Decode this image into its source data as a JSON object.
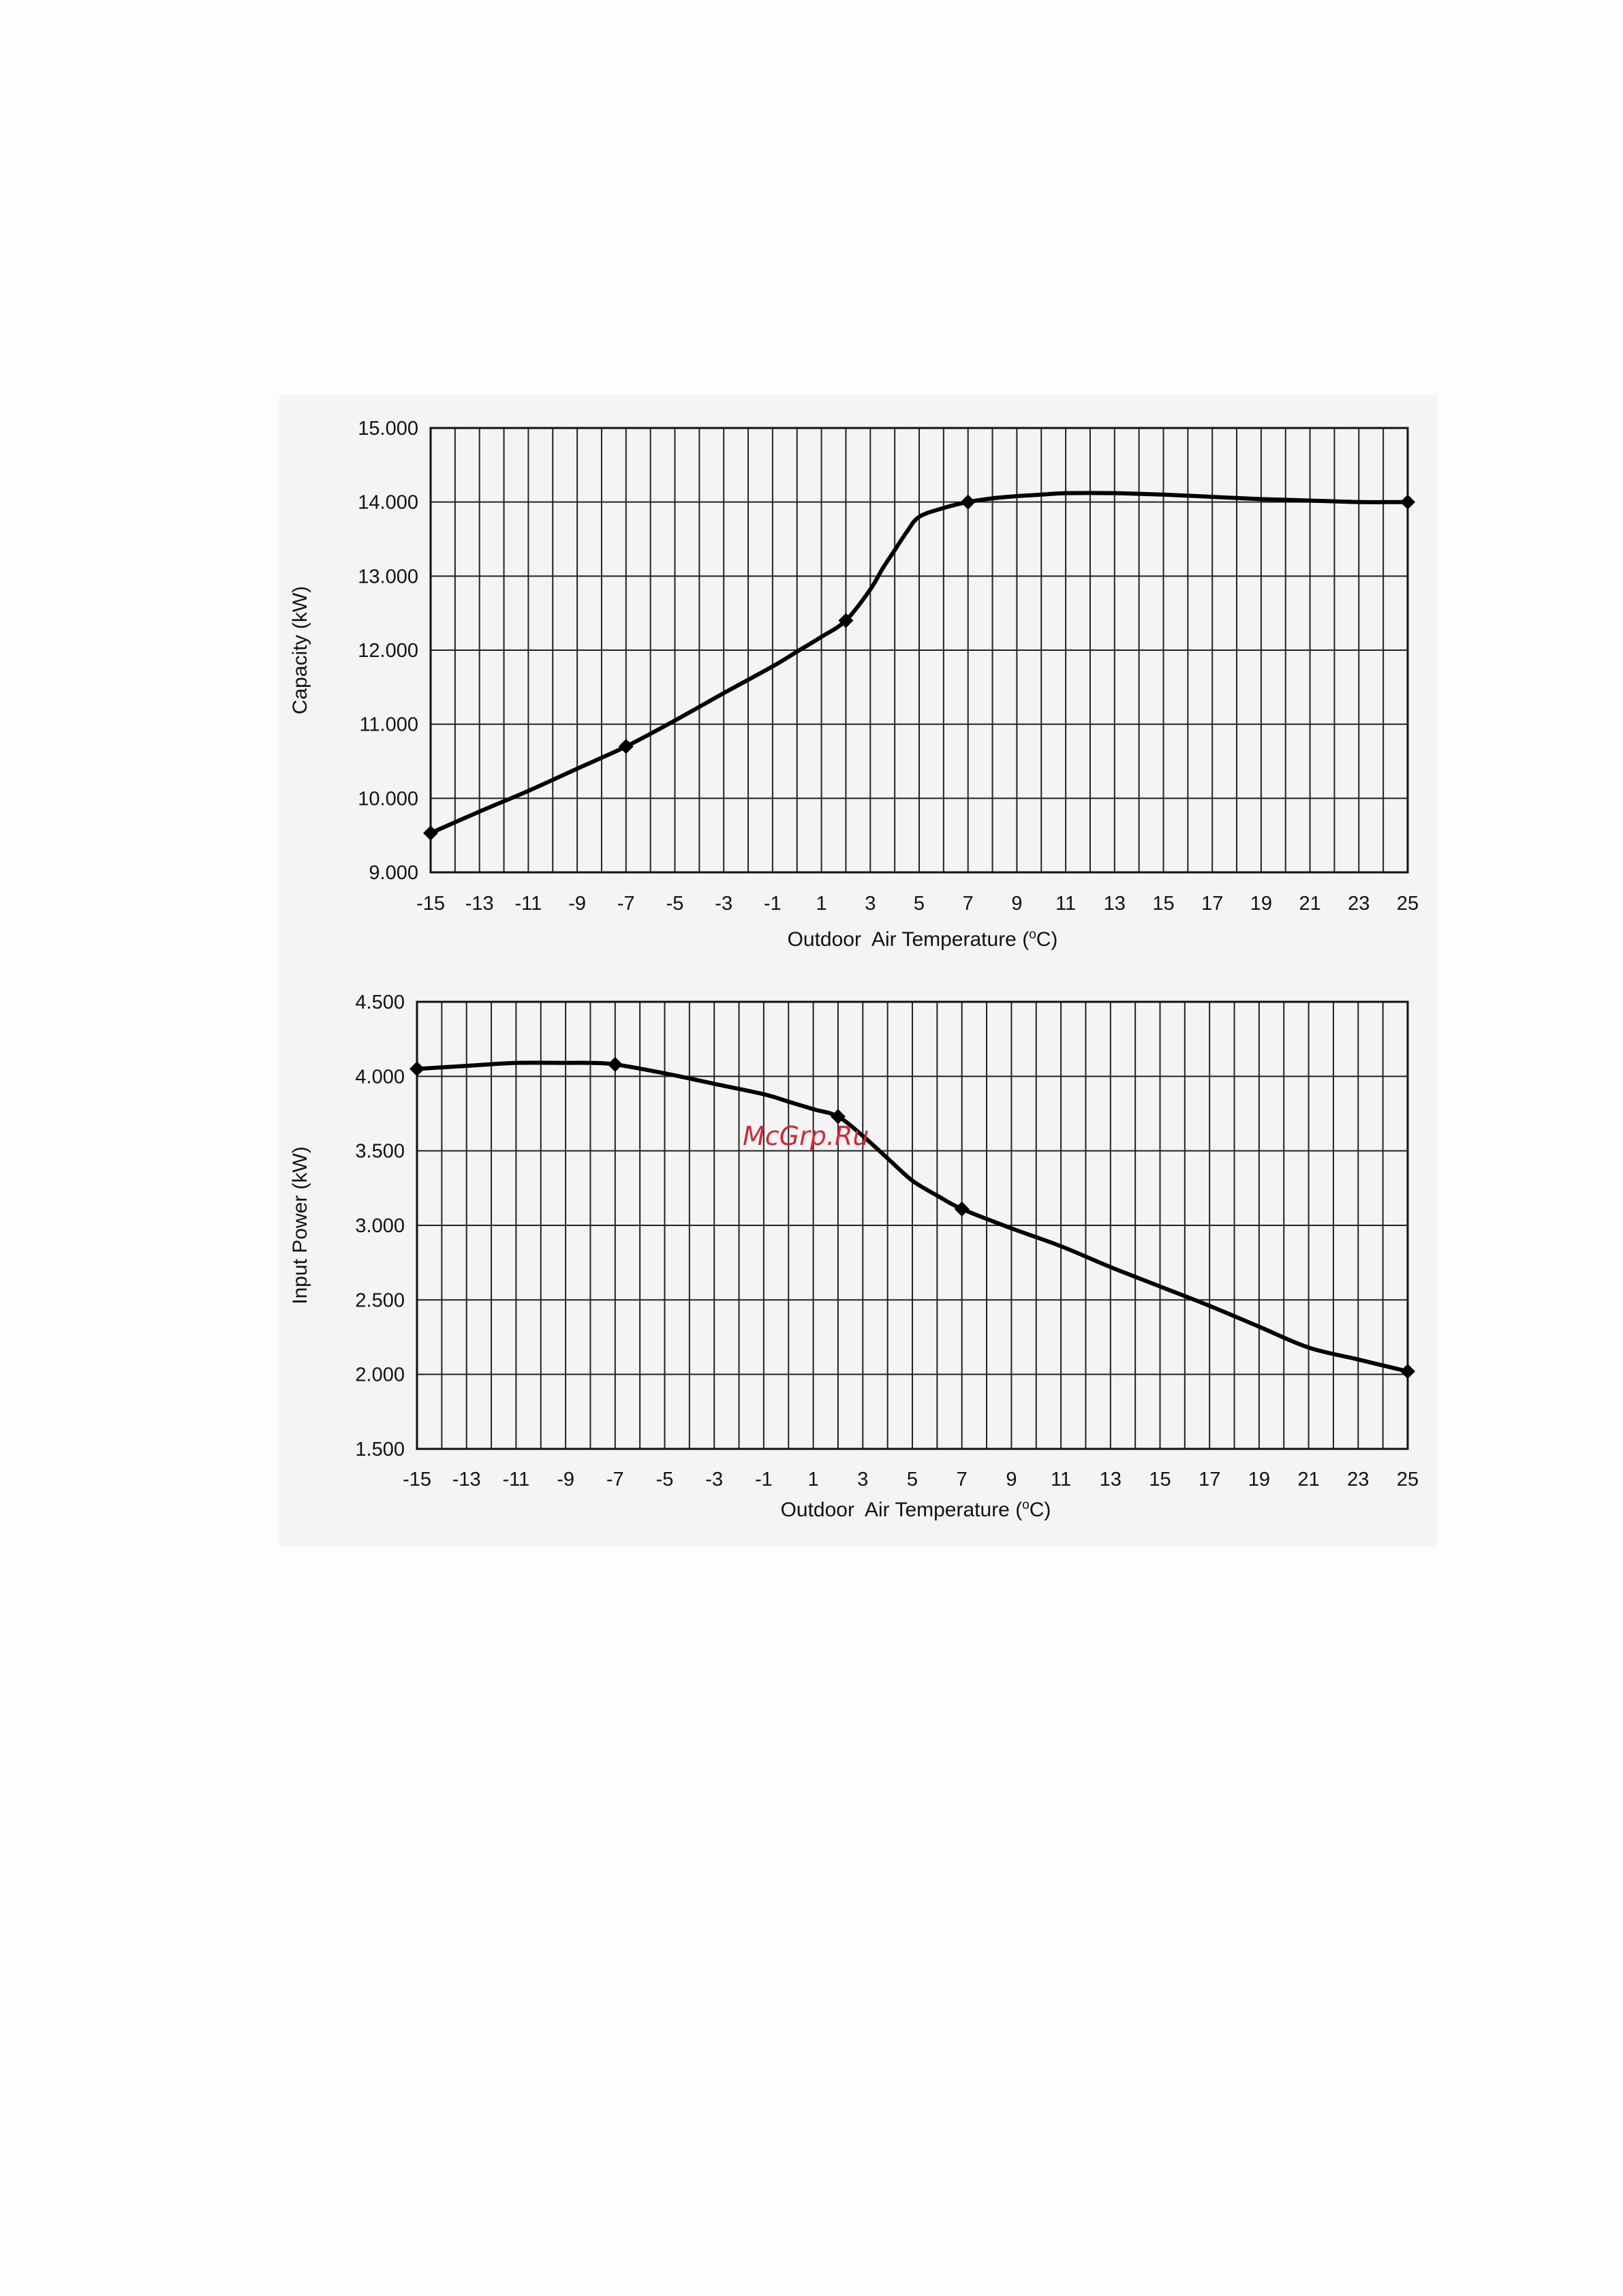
{
  "watermark": "McGrp.Ru",
  "chart_data": [
    {
      "type": "line",
      "xlabel": "Outdoor  Air Temperature (oC)",
      "ylabel": "Capacity (kW)",
      "xlim": [
        -15,
        25
      ],
      "ylim": [
        9.0,
        15.0
      ],
      "xticks": [
        "-15",
        "-13",
        "-11",
        "-9",
        "-7",
        "-5",
        "-3",
        "-1",
        "1",
        "3",
        "5",
        "7",
        "9",
        "11",
        "13",
        "15",
        "17",
        "19",
        "21",
        "23",
        "25"
      ],
      "yticks": [
        "15.000",
        "14.000",
        "13.000",
        "12.000",
        "11.000",
        "10.000",
        "9.000"
      ],
      "grid": true,
      "series": [
        {
          "x": [
            -15,
            -13,
            -11,
            -9,
            -7,
            -5,
            -3,
            -1,
            0,
            1,
            2,
            3,
            3.5,
            4,
            4.5,
            5,
            6,
            7,
            8,
            9,
            10,
            11,
            13,
            15,
            17,
            19,
            21,
            23,
            25
          ],
          "y": [
            9.53,
            9.82,
            10.1,
            10.4,
            10.7,
            11.05,
            11.42,
            11.78,
            11.98,
            12.18,
            12.4,
            12.82,
            13.1,
            13.35,
            13.6,
            13.8,
            13.92,
            14.0,
            14.05,
            14.08,
            14.1,
            14.12,
            14.12,
            14.1,
            14.07,
            14.04,
            14.02,
            14.0,
            14.0
          ]
        }
      ],
      "markers": {
        "x": [
          -15,
          -7,
          2,
          7,
          25
        ],
        "y": [
          9.53,
          10.7,
          12.4,
          14.0,
          14.0
        ]
      }
    },
    {
      "type": "line",
      "xlabel": "Outdoor  Air Temperature (oC)",
      "ylabel": "Input Power (kW)",
      "xlim": [
        -15,
        25
      ],
      "ylim": [
        1.5,
        4.5
      ],
      "xticks": [
        "-15",
        "-13",
        "-11",
        "-9",
        "-7",
        "-5",
        "-3",
        "-1",
        "1",
        "3",
        "5",
        "7",
        "9",
        "11",
        "13",
        "15",
        "17",
        "19",
        "21",
        "23",
        "25"
      ],
      "yticks": [
        "4.500",
        "4.000",
        "3.500",
        "3.000",
        "2.500",
        "2.000",
        "1.500"
      ],
      "grid": true,
      "series": [
        {
          "x": [
            -15,
            -13,
            -11,
            -9,
            -8,
            -7,
            -5,
            -3,
            -1,
            0,
            1,
            2,
            3,
            4,
            5,
            6,
            7,
            9,
            11,
            13,
            15,
            17,
            19,
            21,
            23,
            25
          ],
          "y": [
            4.05,
            4.07,
            4.09,
            4.09,
            4.09,
            4.08,
            4.02,
            3.95,
            3.88,
            3.83,
            3.78,
            3.73,
            3.6,
            3.45,
            3.3,
            3.2,
            3.11,
            2.98,
            2.86,
            2.72,
            2.59,
            2.46,
            2.32,
            2.18,
            2.1,
            2.02
          ]
        }
      ],
      "markers": {
        "x": [
          -15,
          -7,
          2,
          7,
          25
        ],
        "y": [
          4.05,
          4.08,
          3.73,
          3.11,
          2.02
        ]
      }
    }
  ]
}
